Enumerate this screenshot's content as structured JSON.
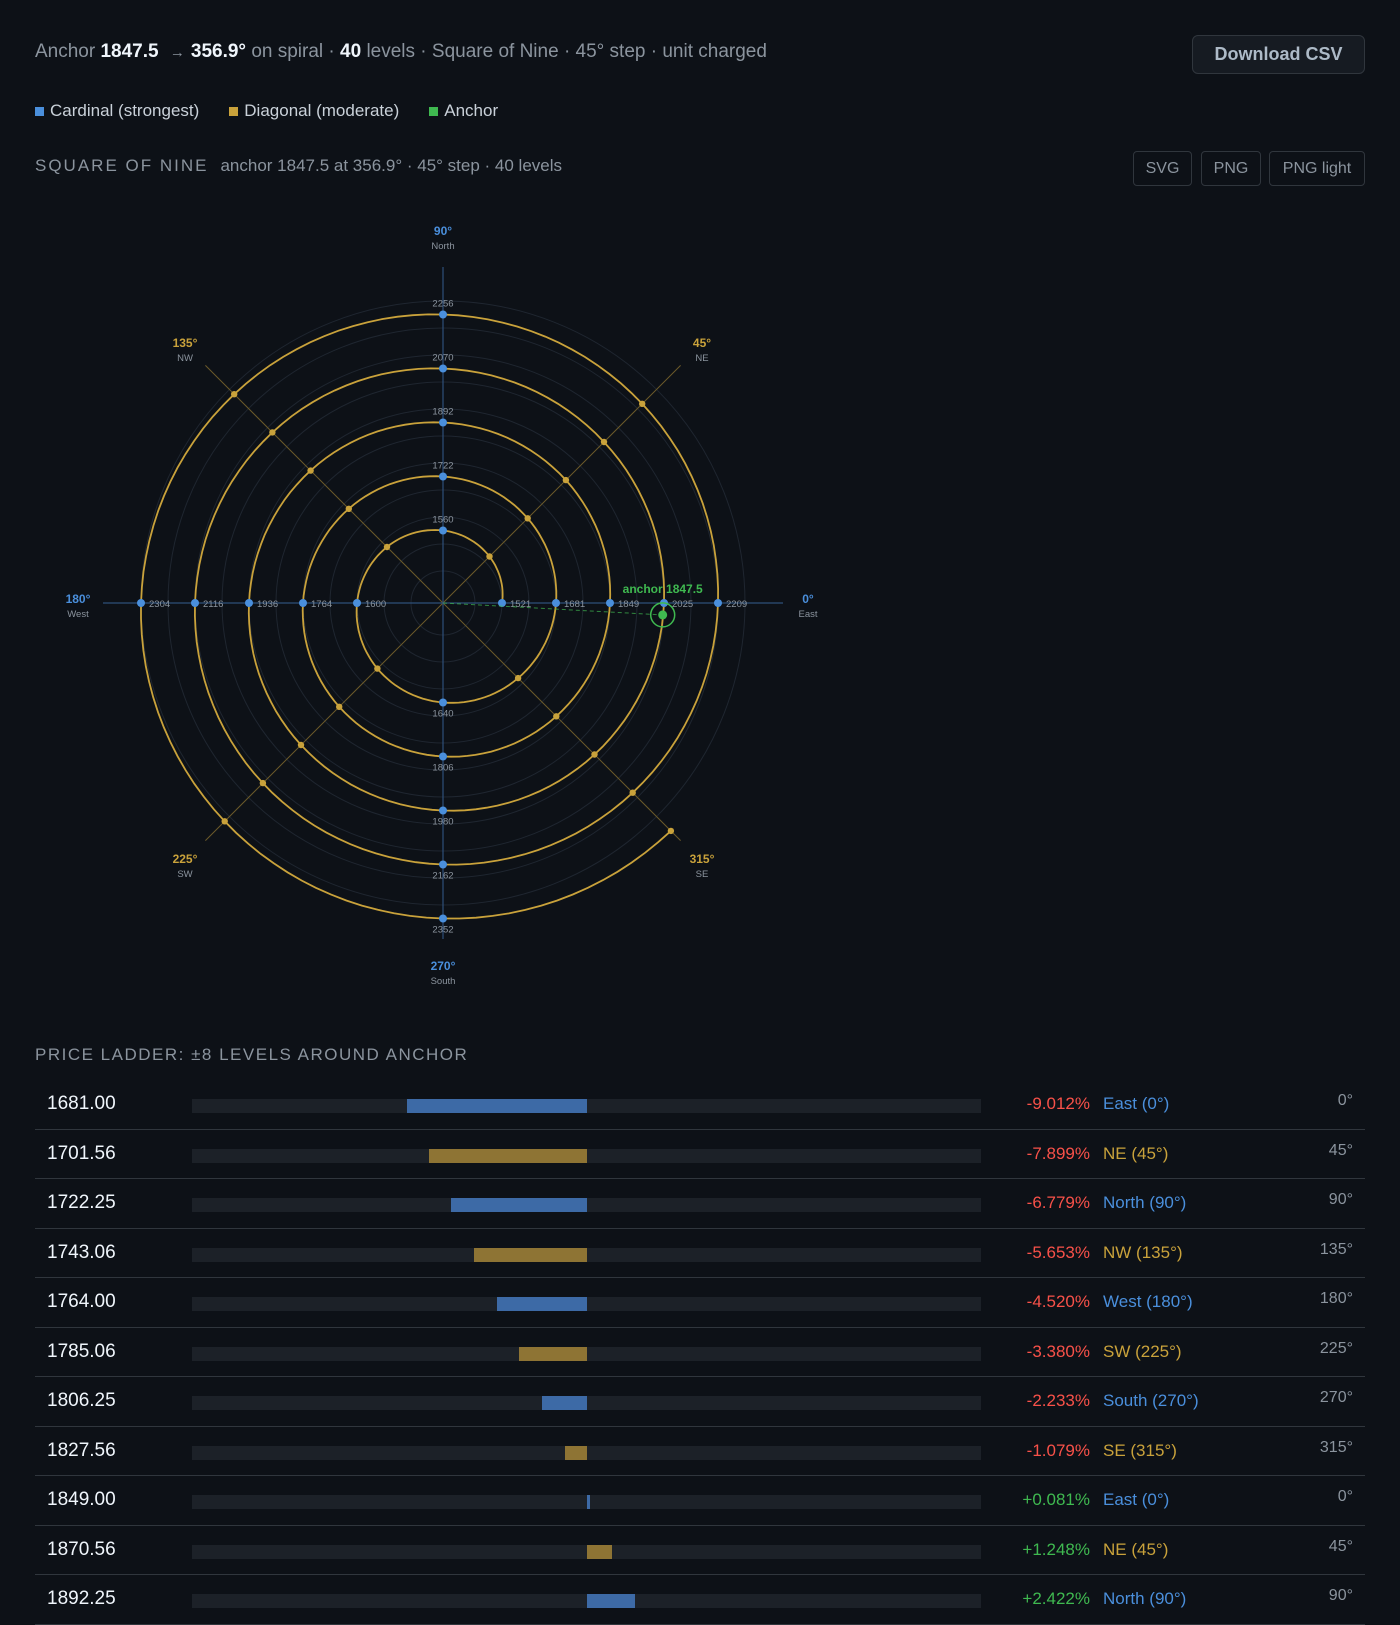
{
  "summary": {
    "anchor_label": "Anchor",
    "anchor_value": "1847.5",
    "arrow": "→",
    "angle_value": "356.9°",
    "on_spiral": "on spiral ·",
    "levels_value": "40",
    "levels_text": "levels · Square of Nine · 45° step · unit charged"
  },
  "toolbar": {
    "download_label": "Download CSV"
  },
  "legend": [
    {
      "label": "Cardinal (strongest)",
      "color": "#4a8fdc"
    },
    {
      "label": "Diagonal (moderate)",
      "color": "#c9a23b"
    },
    {
      "label": "Anchor",
      "color": "#3fb950"
    }
  ],
  "section": {
    "title": "SQUARE OF NINE",
    "subtitle": "anchor 1847.5 at 356.9° · 45° step · 40 levels"
  },
  "export": {
    "svg": "SVG",
    "png": "PNG",
    "png_light": "PNG light"
  },
  "colors": {
    "cardinal": "#4a8fdc",
    "diagonal": "#c9a23b",
    "anchor": "#3fb950",
    "negative": "#f85149",
    "positive": "#3fb950"
  },
  "chart_data": {
    "type": "polar-spiral",
    "axes": [
      {
        "deg": "0°",
        "dir": "East",
        "kind": "cardinal"
      },
      {
        "deg": "45°",
        "dir": "NE",
        "kind": "diagonal"
      },
      {
        "deg": "90°",
        "dir": "North",
        "kind": "cardinal"
      },
      {
        "deg": "135°",
        "dir": "NW",
        "kind": "diagonal"
      },
      {
        "deg": "180°",
        "dir": "West",
        "kind": "cardinal"
      },
      {
        "deg": "225°",
        "dir": "SW",
        "kind": "diagonal"
      },
      {
        "deg": "270°",
        "dir": "South",
        "kind": "cardinal"
      },
      {
        "deg": "315°",
        "dir": "SE",
        "kind": "diagonal"
      }
    ],
    "cardinal_labels": {
      "east": [
        "1521",
        "1681",
        "1849",
        "2025",
        "2209"
      ],
      "north": [
        "1560",
        "1722",
        "1892",
        "2070",
        "2256"
      ],
      "west": [
        "1600",
        "1764",
        "1936",
        "2116",
        "2304"
      ],
      "south": [
        "1640",
        "1806",
        "1980",
        "2162",
        "2352"
      ]
    },
    "rings": 5,
    "anchor": {
      "label": "anchor 1847.5",
      "price": 1847.5,
      "angle": 356.9
    }
  },
  "ladder": {
    "title": "PRICE LADDER: ±8 LEVELS AROUND ANCHOR",
    "rows": [
      {
        "price": "1681.00",
        "pct": "-9.012%",
        "value": -9.012,
        "dir": "East (0°)",
        "deg": "0°",
        "kind": "cardinal"
      },
      {
        "price": "1701.56",
        "pct": "-7.899%",
        "value": -7.899,
        "dir": "NE (45°)",
        "deg": "45°",
        "kind": "diagonal"
      },
      {
        "price": "1722.25",
        "pct": "-6.779%",
        "value": -6.779,
        "dir": "North (90°)",
        "deg": "90°",
        "kind": "cardinal"
      },
      {
        "price": "1743.06",
        "pct": "-5.653%",
        "value": -5.653,
        "dir": "NW (135°)",
        "deg": "135°",
        "kind": "diagonal"
      },
      {
        "price": "1764.00",
        "pct": "-4.520%",
        "value": -4.52,
        "dir": "West (180°)",
        "deg": "180°",
        "kind": "cardinal"
      },
      {
        "price": "1785.06",
        "pct": "-3.380%",
        "value": -3.38,
        "dir": "SW (225°)",
        "deg": "225°",
        "kind": "diagonal"
      },
      {
        "price": "1806.25",
        "pct": "-2.233%",
        "value": -2.233,
        "dir": "South (270°)",
        "deg": "270°",
        "kind": "cardinal"
      },
      {
        "price": "1827.56",
        "pct": "-1.079%",
        "value": -1.079,
        "dir": "SE (315°)",
        "deg": "315°",
        "kind": "diagonal"
      },
      {
        "price": "1849.00",
        "pct": "+0.081%",
        "value": 0.081,
        "dir": "East (0°)",
        "deg": "0°",
        "kind": "cardinal"
      },
      {
        "price": "1870.56",
        "pct": "+1.248%",
        "value": 1.248,
        "dir": "NE (45°)",
        "deg": "45°",
        "kind": "diagonal"
      },
      {
        "price": "1892.25",
        "pct": "+2.422%",
        "value": 2.422,
        "dir": "North (90°)",
        "deg": "90°",
        "kind": "cardinal"
      }
    ]
  }
}
